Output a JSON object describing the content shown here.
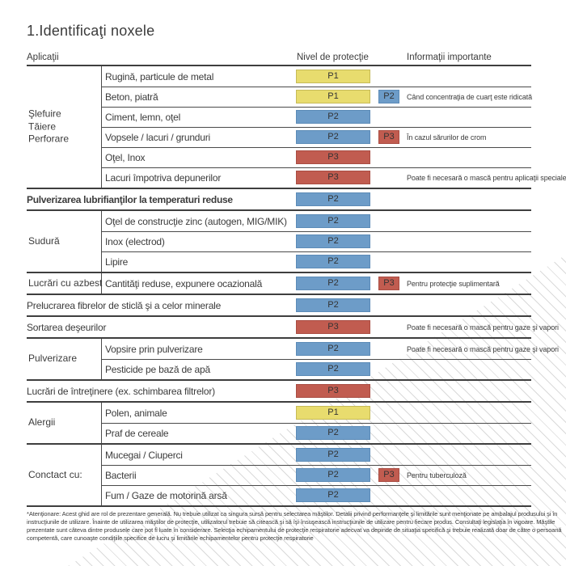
{
  "title": "1.Identificaţi noxele",
  "colors": {
    "p1": {
      "bg": "#e8dc6e",
      "border": "#c6ba58"
    },
    "p2": {
      "bg": "#6d9cc8",
      "border": "#5c8bb7"
    },
    "p3": {
      "bg": "#c15c50",
      "border": "#a94c42"
    }
  },
  "header": {
    "applications": "Aplicaţii",
    "protection": "Nivel de protecţie",
    "info": "Informaţii importante"
  },
  "table": {
    "groups": [
      {
        "label": "Şlefuire\nTăiere\nPerforare",
        "rows": [
          {
            "text": "Rugină, particule de metal",
            "level": "P1"
          },
          {
            "text": "Beton, piatră",
            "level": "P1",
            "level2": "P2",
            "info": "Când concentraţia de cuarţ este ridicată"
          },
          {
            "text": "Ciment, lemn, oţel",
            "level": "P2"
          },
          {
            "text": "Vopsele / lacuri / grunduri",
            "level": "P2",
            "level2": "P3",
            "info": "În cazul sărurilor de crom"
          },
          {
            "text": "Oţel, Inox",
            "level": "P3"
          },
          {
            "text": "Lacuri împotriva depunerilor",
            "level": "P3",
            "info": "Poate fi necesară o mască pentru aplicaţii speciale"
          }
        ]
      },
      {
        "rows": [
          {
            "text": "Pulverizarea lubrifianţilor la temperaturi reduse",
            "level": "P2",
            "full": true,
            "bold": true
          }
        ]
      },
      {
        "label": "Sudură",
        "rows": [
          {
            "text": "Oţel de construcţie zinc (autogen, MIG/MIK)",
            "level": "P2"
          },
          {
            "text": "Inox (electrod)",
            "level": "P2"
          },
          {
            "text": "Lipire",
            "level": "P2"
          }
        ]
      },
      {
        "label": "Lucrări cu azbest",
        "rows": [
          {
            "text": "Cantităţi reduse, expunere ocazională",
            "level": "P2",
            "level2": "P3",
            "info": "Pentru protecţie suplimentară"
          }
        ]
      },
      {
        "rows": [
          {
            "text": "Prelucrarea fibrelor de sticlă şi a celor minerale",
            "level": "P2",
            "full": true
          }
        ]
      },
      {
        "rows": [
          {
            "text": "Sortarea deşeurilor",
            "level": "P3",
            "full": true,
            "info": "Poate fi necesară o mască pentru gaze şi vapori"
          }
        ]
      },
      {
        "label": "Pulverizare",
        "rows": [
          {
            "text": "Vopsire prin pulverizare",
            "level": "P2",
            "info": "Poate fi necesară o mască pentru gaze şi vapori"
          },
          {
            "text": "Pesticide pe bază de apă",
            "level": "P2"
          }
        ]
      },
      {
        "rows": [
          {
            "text": "Lucrări de întreţinere (ex. schimbarea filtrelor)",
            "level": "P3",
            "full": true
          }
        ]
      },
      {
        "label": "Alergii",
        "rows": [
          {
            "text": "Polen, animale",
            "level": "P1"
          },
          {
            "text": "Praf de cereale",
            "level": "P2"
          }
        ]
      },
      {
        "label": "Conctact cu:",
        "rows": [
          {
            "text": "Mucegai / Ciuperci",
            "level": "P2"
          },
          {
            "text": "Bacterii",
            "level": "P2",
            "level2": "P3",
            "info": "Pentru tuberculoză"
          },
          {
            "text": "Fum / Gaze de motorină arsă",
            "level": "P2"
          }
        ]
      }
    ]
  },
  "footnote": "*Atenţionare: Acest ghid are rol de prezentare generală. Nu trebuie utilizat ca singura sursă pentru selectarea măştilor. Detalii privind performanţele şi limitările sunt menţionate pe ambalajul produsului şi în instrucţiunile de utilizare. Înainte de utilizarea măştilor de protecţie, utilizatorul trebuie să citească şi să îşi însuşească instrucţiunile de utilizare pentru fiecare produs. Consultaţi legislaţia în vigoare. Măştile prezentate sunt câteva dintre produsele care pot fi luate în considerare. Selecţia echipamentului de protecţie respiratorie adecvat va depinde de situaţia specifică şi trebuie realizată doar de către o persoană competentă, care cunoaşte condiţiile specifice de lucru şi limitările echipamentelor pentru protecţie respiratorie"
}
